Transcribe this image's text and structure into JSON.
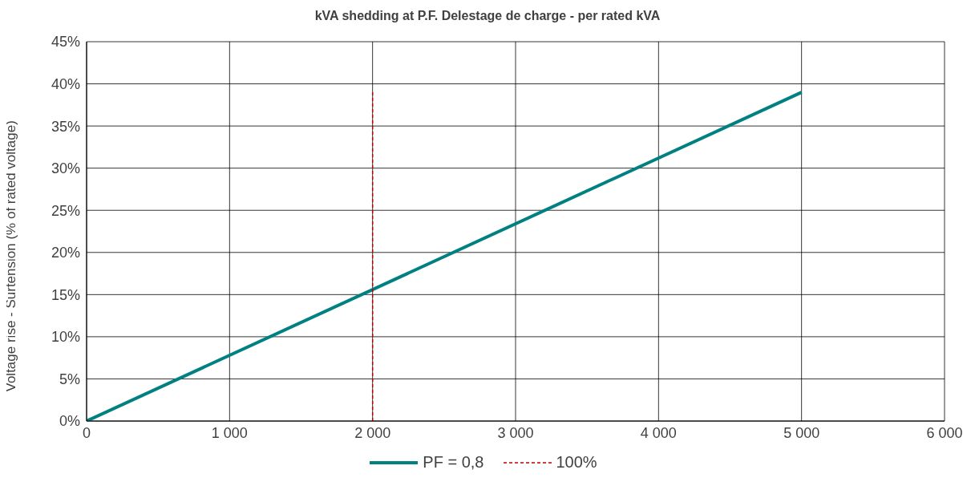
{
  "chart_data": {
    "type": "line",
    "title": "kVA shedding at P.F. Delestage de charge  - per rated kVA",
    "ylabel": "Voltage rise - Surtension  (% of rated voltage)",
    "series": [
      {
        "name": "PF = 0,8",
        "color": "#008080",
        "x": [
          0,
          5000
        ],
        "values": [
          0,
          39
        ],
        "line_style": "solid"
      },
      {
        "name": "100%",
        "color": "#c00000",
        "x": [
          2000,
          2000
        ],
        "values": [
          0,
          39
        ],
        "line_style": "dashed"
      }
    ],
    "xlim": [
      0,
      6000
    ],
    "xticks": [
      0,
      {
        "value": 1000,
        "label": "1 000"
      },
      {
        "value": 2000,
        "label": "2 000"
      },
      {
        "value": 3000,
        "label": "3 000"
      },
      {
        "value": 4000,
        "label": "4 000"
      },
      {
        "value": 5000,
        "label": "5 000"
      },
      {
        "value": 6000,
        "label": "6 000"
      }
    ],
    "ylim": [
      0,
      45
    ],
    "yticks": [
      {
        "value": 0,
        "label": "0%"
      },
      {
        "value": 5,
        "label": "5%"
      },
      {
        "value": 10,
        "label": "10%"
      },
      {
        "value": 15,
        "label": "15%"
      },
      {
        "value": 20,
        "label": "20%"
      },
      {
        "value": 25,
        "label": "25%"
      },
      {
        "value": 30,
        "label": "30%"
      },
      {
        "value": 35,
        "label": "35%"
      },
      {
        "value": 40,
        "label": "40%"
      },
      {
        "value": 45,
        "label": "45%"
      }
    ],
    "grid": true,
    "legend": "bottom",
    "marker": "none"
  }
}
